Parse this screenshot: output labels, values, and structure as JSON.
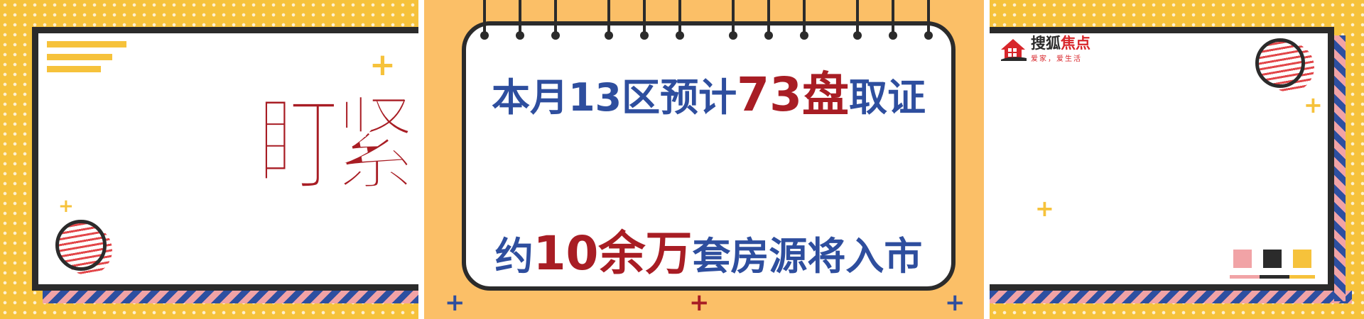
{
  "left_panel": {
    "title": "盯紧了!"
  },
  "center_panel": {
    "headline_line1": {
      "pre": "本月13区预计",
      "highlight": "73盘",
      "post": "取证"
    },
    "headline_line2": {
      "pre": "约",
      "highlight": "10余万",
      "post": "套房源将入市"
    }
  },
  "right_panel": {
    "logo": {
      "name_dark": "搜狐",
      "name_red": "焦点",
      "tagline": "爱家，爱生活"
    }
  },
  "colors": {
    "background_yellow": "#f6c23b",
    "center_orange": "#fbbf67",
    "text_blue": "#2e4e9e",
    "text_red": "#a81d24",
    "outline_dark": "#2b2b2b",
    "stripe_blue": "#2d4fa0",
    "stripe_pink": "#f1a3a6",
    "swatch_pink": "#f1a3a6",
    "swatch_dark": "#2b2b2b",
    "swatch_yellow": "#f6c23b"
  },
  "icons": [
    "plus-icon",
    "wave-circle-icon",
    "house-logo-icon",
    "notepad-ring-icon"
  ]
}
